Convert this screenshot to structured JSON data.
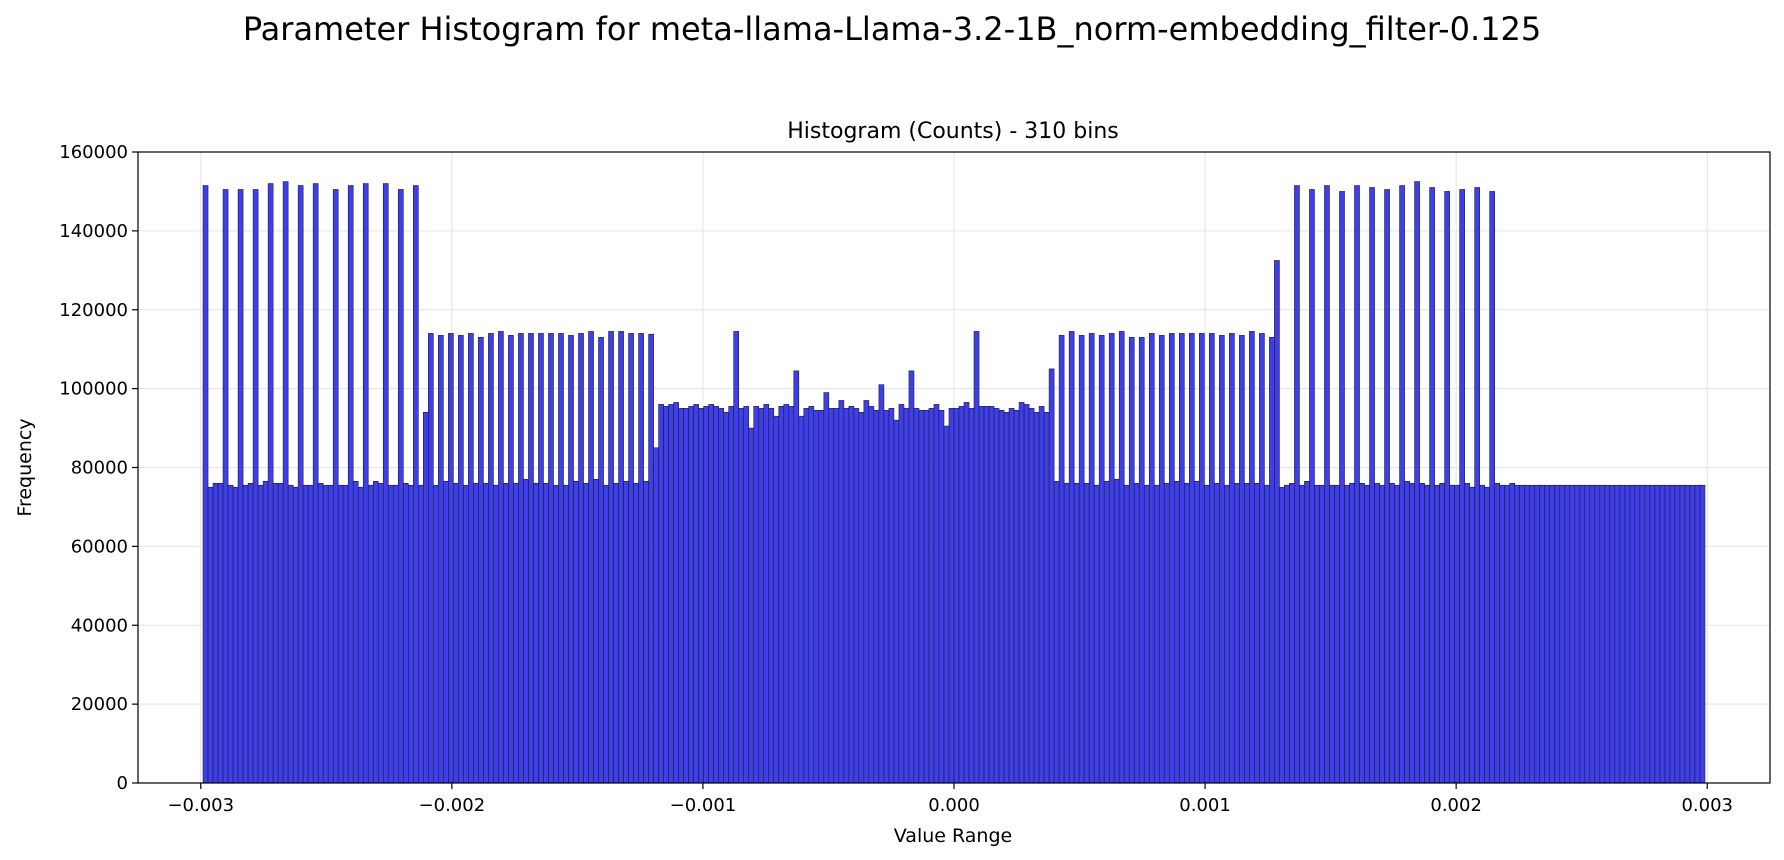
{
  "figure": {
    "suptitle": "Parameter Histogram for meta-llama-Llama-3.2-1B_norm-embedding_filter-0.125"
  },
  "colors": {
    "bar_fill": "#3f3fe8",
    "bar_edge": "#1a1a40",
    "grid": "#e3e3e3",
    "axis": "#000000",
    "background": "#ffffff"
  },
  "chart_data": {
    "type": "bar",
    "title": "Histogram (Counts) - 310 bins",
    "xlabel": "Value Range",
    "ylabel": "Frequency",
    "xlim": [
      -0.00325,
      0.00325
    ],
    "ylim": [
      0,
      160000
    ],
    "grid": true,
    "legend": "none",
    "bin_range": [
      -0.002991,
      0.002991
    ],
    "bin_count": 310,
    "xticks": [
      {
        "value": -0.003,
        "label": "−0.003"
      },
      {
        "value": -0.002,
        "label": "−0.002"
      },
      {
        "value": -0.001,
        "label": "−0.001"
      },
      {
        "value": 0.0,
        "label": "0.000"
      },
      {
        "value": 0.001,
        "label": "0.001"
      },
      {
        "value": 0.002,
        "label": "0.002"
      },
      {
        "value": 0.003,
        "label": "0.003"
      }
    ],
    "yticks": [
      {
        "value": 0,
        "label": "0"
      },
      {
        "value": 20000,
        "label": "20000"
      },
      {
        "value": 40000,
        "label": "40000"
      },
      {
        "value": 60000,
        "label": "60000"
      },
      {
        "value": 80000,
        "label": "80000"
      },
      {
        "value": 100000,
        "label": "100000"
      },
      {
        "value": 120000,
        "label": "120000"
      },
      {
        "value": 140000,
        "label": "140000"
      },
      {
        "value": 160000,
        "label": "160000"
      }
    ],
    "values": [
      151500,
      75000,
      76000,
      76000,
      150500,
      75500,
      75000,
      150500,
      75500,
      76000,
      150500,
      75500,
      76500,
      152000,
      76000,
      76000,
      152500,
      75500,
      75000,
      151500,
      75500,
      75500,
      152000,
      76000,
      75500,
      75500,
      150500,
      75500,
      75500,
      151500,
      76500,
      75000,
      152000,
      75500,
      76500,
      76000,
      152000,
      75500,
      75500,
      150500,
      76000,
      75500,
      151500,
      75500,
      94000,
      114000,
      75500,
      113500,
      76500,
      114000,
      76000,
      113500,
      75500,
      114000,
      76000,
      113000,
      76000,
      114000,
      75500,
      114500,
      76000,
      113500,
      76000,
      114000,
      77000,
      114000,
      76000,
      114000,
      76000,
      114000,
      75500,
      114000,
      75500,
      113500,
      76500,
      114000,
      76000,
      114500,
      77000,
      113000,
      75500,
      114500,
      76000,
      114500,
      76500,
      114000,
      76000,
      114000,
      76500,
      113800,
      85000,
      96000,
      95500,
      96000,
      96500,
      95000,
      95000,
      95500,
      96000,
      95000,
      95500,
      96000,
      95500,
      95000,
      94000,
      95500,
      114500,
      95000,
      95500,
      90000,
      95500,
      95000,
      96000,
      95000,
      93000,
      95500,
      96000,
      95500,
      104500,
      93000,
      95000,
      95500,
      94500,
      94500,
      99000,
      95000,
      95000,
      97000,
      95000,
      95500,
      95000,
      94000,
      97000,
      95500,
      94500,
      101000,
      94500,
      95000,
      92000,
      96000,
      95000,
      104500,
      95000,
      94500,
      94500,
      95000,
      96000,
      94500,
      90500,
      95000,
      95000,
      95500,
      96500,
      95000,
      114500,
      95500,
      95500,
      95500,
      95000,
      94500,
      94000,
      95000,
      94500,
      96500,
      96000,
      95000,
      94000,
      95500,
      94000,
      105000,
      76500,
      113500,
      76000,
      114500,
      76000,
      113500,
      76000,
      114000,
      75500,
      113500,
      76500,
      114000,
      77000,
      114500,
      75500,
      113000,
      76000,
      113000,
      75500,
      114000,
      75500,
      113500,
      76000,
      114000,
      76500,
      114000,
      76000,
      114000,
      76500,
      114000,
      75500,
      114000,
      76000,
      113500,
      75500,
      114000,
      76000,
      113500,
      76000,
      114500,
      76000,
      114000,
      75500,
      113000,
      132500,
      75000,
      75500,
      76000,
      151500,
      75500,
      76500,
      150500,
      75500,
      75500,
      151500,
      75500,
      75500,
      150000,
      75500,
      76000,
      151500,
      76000,
      75500,
      151000,
      76000,
      75500,
      150500,
      76000,
      75500,
      151500,
      76500,
      76000,
      152500,
      76000,
      75500,
      151000,
      75500,
      76000,
      150000,
      75500,
      75500,
      150500,
      76000,
      75000,
      151000,
      75500,
      75000,
      150000,
      76000,
      75500,
      75500,
      76000,
      75500,
      75500,
      75500,
      75500,
      75500,
      75500,
      75500,
      75500,
      75500,
      75500,
      75500,
      75500,
      75500,
      75500,
      75500,
      75500,
      75500,
      75500,
      75500,
      75500,
      75500,
      75500,
      75500,
      75500,
      75500,
      75500,
      75500,
      75500,
      75500,
      75500,
      75500,
      75500,
      75500,
      75500,
      75500,
      75500,
      75500,
      75500
    ]
  }
}
